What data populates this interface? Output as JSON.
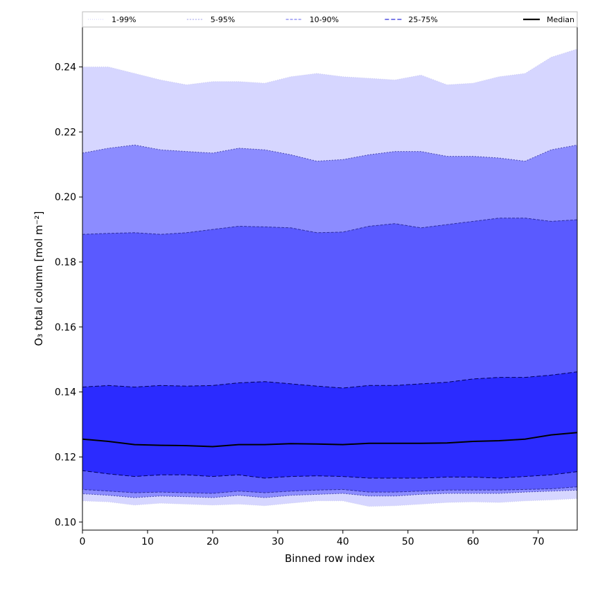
{
  "chart_data": {
    "type": "area",
    "xlabel": "Binned row index",
    "ylabel": "O₃ total column [mol m⁻²]",
    "xlim": [
      0,
      76
    ],
    "ylim": [
      0.0975,
      0.2525
    ],
    "xticks": [
      0,
      10,
      20,
      30,
      40,
      50,
      60,
      70
    ],
    "yticks": [
      0.1,
      0.12,
      0.14,
      0.16,
      0.18,
      0.2,
      0.22,
      0.24
    ],
    "legend_position": "top",
    "grid": false,
    "x": [
      0,
      4,
      8,
      12,
      16,
      20,
      24,
      28,
      32,
      36,
      40,
      44,
      48,
      52,
      56,
      60,
      64,
      68,
      72,
      76
    ],
    "median": [
      0.1255,
      0.1248,
      0.1238,
      0.1236,
      0.1235,
      0.1232,
      0.1238,
      0.1238,
      0.1241,
      0.124,
      0.1238,
      0.1242,
      0.1242,
      0.1242,
      0.1243,
      0.1248,
      0.125,
      0.1255,
      0.1268,
      0.1275
    ],
    "bands": [
      {
        "name": "1-99%",
        "color": "#d6d6ff",
        "line_color": "#c8c8f0",
        "dash": "1,2",
        "lower": [
          0.1065,
          0.1062,
          0.1052,
          0.1058,
          0.1055,
          0.1052,
          0.1055,
          0.105,
          0.1058,
          0.1065,
          0.1065,
          0.1048,
          0.105,
          0.1055,
          0.106,
          0.1062,
          0.106,
          0.1065,
          0.1068,
          0.1072
        ],
        "upper": [
          0.24,
          0.24,
          0.238,
          0.236,
          0.2345,
          0.2355,
          0.2355,
          0.235,
          0.237,
          0.238,
          0.237,
          0.2365,
          0.236,
          0.2375,
          0.2345,
          0.235,
          0.237,
          0.238,
          0.243,
          0.2455
        ]
      },
      {
        "name": "5-95%",
        "color": "#8c8cff",
        "line_color": "#4a4ab0",
        "dash": "2,2",
        "lower": [
          0.1087,
          0.1082,
          0.1075,
          0.108,
          0.1078,
          0.1075,
          0.1082,
          0.1075,
          0.1082,
          0.1085,
          0.1088,
          0.108,
          0.108,
          0.1085,
          0.1088,
          0.1088,
          0.1088,
          0.1092,
          0.1095,
          0.1098
        ],
        "upper": [
          0.2135,
          0.215,
          0.216,
          0.2145,
          0.214,
          0.2135,
          0.215,
          0.2145,
          0.213,
          0.211,
          0.2115,
          0.213,
          0.214,
          0.214,
          0.2125,
          0.2125,
          0.212,
          0.211,
          0.2145,
          0.216
        ]
      },
      {
        "name": "10-90%",
        "color": "#5a5aff",
        "line_color": "#3030a0",
        "dash": "4,2",
        "lower": [
          0.11,
          0.1095,
          0.109,
          0.1092,
          0.109,
          0.1088,
          0.1095,
          0.109,
          0.1095,
          0.1098,
          0.11,
          0.1092,
          0.1092,
          0.1095,
          0.1098,
          0.1098,
          0.1098,
          0.11,
          0.1102,
          0.1108
        ],
        "upper": [
          0.1885,
          0.1888,
          0.189,
          0.1885,
          0.189,
          0.19,
          0.191,
          0.1908,
          0.1905,
          0.189,
          0.1892,
          0.191,
          0.1918,
          0.1905,
          0.1915,
          0.1925,
          0.1935,
          0.1935,
          0.1925,
          0.193
        ]
      },
      {
        "name": "25-75%",
        "color": "#2b2bff",
        "line_color": "#00005a",
        "dash": "6,3",
        "lower": [
          0.1158,
          0.1148,
          0.114,
          0.1145,
          0.1145,
          0.114,
          0.1145,
          0.1135,
          0.114,
          0.1142,
          0.114,
          0.1135,
          0.1135,
          0.1135,
          0.1138,
          0.1138,
          0.1135,
          0.114,
          0.1145,
          0.1155
        ],
        "upper": [
          0.1415,
          0.142,
          0.1415,
          0.142,
          0.1418,
          0.142,
          0.1428,
          0.1432,
          0.1425,
          0.1418,
          0.1412,
          0.142,
          0.142,
          0.1425,
          0.143,
          0.144,
          0.1445,
          0.1445,
          0.1452,
          0.1462
        ]
      }
    ],
    "legend": [
      {
        "label": "1-99%",
        "color": "#d0d0ff",
        "dash": "1,2",
        "width": 1
      },
      {
        "label": "5-95%",
        "color": "#9898e8",
        "dash": "2,2",
        "width": 1
      },
      {
        "label": "10-90%",
        "color": "#8080f0",
        "dash": "4,2",
        "width": 1.3
      },
      {
        "label": "25-75%",
        "color": "#5050e0",
        "dash": "6,3",
        "width": 1.6
      },
      {
        "label": "Median",
        "color": "#000000",
        "dash": "",
        "width": 2.2
      }
    ]
  }
}
